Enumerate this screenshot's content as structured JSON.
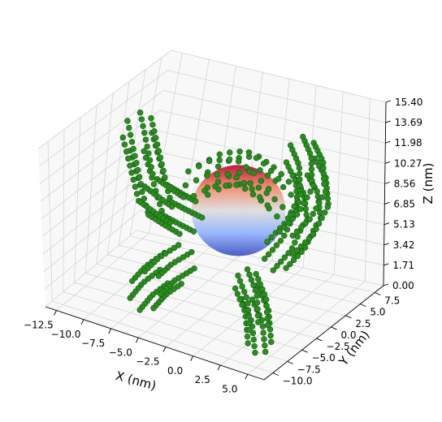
{
  "chart_data": {
    "type": "scatter",
    "projection": "3d",
    "title": "",
    "xlabel": "X (nm)",
    "ylabel": "Y (nm)",
    "zlabel": "Z (nm)",
    "xticks": [
      "−12.5",
      "−10.0",
      "−7.5",
      "−5.0",
      "−2.5",
      "0.0",
      "2.5",
      "5.0"
    ],
    "yticks": [
      "−10.0",
      "−7.5",
      "−5.0",
      "−2.5",
      "0.0",
      "2.5",
      "5.0",
      "7.5"
    ],
    "zticks": [
      "0.00",
      "1.71",
      "3.42",
      "5.13",
      "6.85",
      "8.56",
      "10.27",
      "11.98",
      "13.69",
      "15.40"
    ],
    "zticks_numeric": [
      0.0,
      1.71,
      3.42,
      5.13,
      6.85,
      8.56,
      10.27,
      11.98,
      13.69,
      15.4
    ],
    "xlim": [
      -13.5,
      6.5
    ],
    "ylim": [
      -11.5,
      9.0
    ],
    "zlim": [
      0.0,
      15.4
    ],
    "grid": true,
    "sphere": {
      "center": [
        -2.0,
        0.5,
        7.7
      ],
      "radius": 4.0,
      "colormap": "coolwarm (blue at bottom, red at top)"
    },
    "series": [
      {
        "marker_color": "#2e8b22",
        "edge_color": "#0b5a0b",
        "segments": [
          {
            "x": [
              -9.5,
              -9.0,
              -8.5,
              -8.0
            ],
            "y": [
              -3.0,
              -2.8,
              -2.6,
              -2.4
            ],
            "z": [
              14.5,
              12.5,
              10.5,
              8.5
            ],
            "coil_radius": 1.3
          },
          {
            "x": [
              -8.0,
              -7.0,
              -6.0
            ],
            "y": [
              -2.4,
              -1.5,
              -0.5
            ],
            "z": [
              8.5,
              7.5,
              6.5
            ],
            "coil_radius": 1.3
          },
          {
            "x": [
              2.0,
              3.5,
              4.5
            ],
            "y": [
              3.0,
              2.0,
              0.5
            ],
            "z": [
              12.5,
              11.5,
              10.0
            ],
            "coil_radius": 1.3
          },
          {
            "x": [
              4.5,
              4.0,
              3.0
            ],
            "y": [
              0.5,
              -1.0,
              -2.5
            ],
            "z": [
              10.0,
              8.0,
              6.5
            ],
            "coil_radius": 1.3
          },
          {
            "x": [
              -4.0,
              -5.5,
              -6.5
            ],
            "y": [
              -6.0,
              -6.5,
              -7.0
            ],
            "z": [
              5.0,
              3.5,
              2.0
            ],
            "coil_radius": 1.4
          },
          {
            "x": [
              1.0,
              2.5,
              3.5
            ],
            "y": [
              -4.0,
              -5.0,
              -6.5
            ],
            "z": [
              4.0,
              2.5,
              0.5
            ],
            "coil_radius": 1.0
          },
          {
            "x": [
              -6.0,
              -4.0,
              -2.0,
              0.0,
              2.0
            ],
            "y": [
              0.5,
              1.0,
              1.5,
              1.0,
              0.5
            ],
            "z": [
              9.0,
              10.5,
              11.0,
              10.5,
              9.5
            ],
            "coil_radius": 1.2
          }
        ]
      }
    ]
  }
}
